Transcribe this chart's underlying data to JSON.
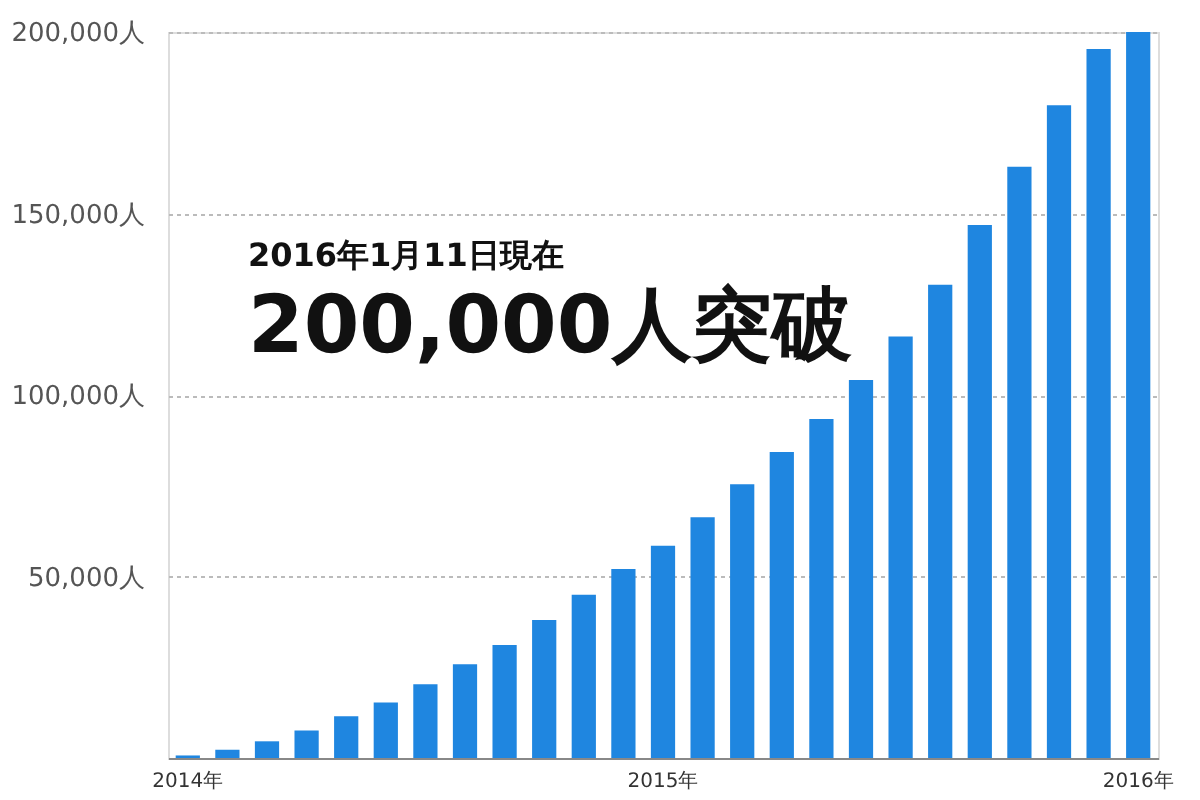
{
  "chart_data": {
    "type": "bar",
    "categories": [
      "2014年",
      null,
      null,
      null,
      null,
      null,
      null,
      null,
      null,
      null,
      null,
      null,
      "2015年",
      null,
      null,
      null,
      null,
      null,
      null,
      null,
      null,
      null,
      null,
      null,
      "2016年"
    ],
    "values": [
      700,
      2300,
      4600,
      7600,
      11500,
      15300,
      20300,
      25800,
      31100,
      38000,
      45000,
      52100,
      58500,
      66300,
      75400,
      84300,
      93400,
      104100,
      116100,
      130400,
      146800,
      162900,
      179800,
      195300,
      200000
    ],
    "color": "#1f86e0",
    "ylim": [
      0,
      200000
    ],
    "yticks": [
      {
        "value": 50000,
        "label": "50,000人"
      },
      {
        "value": 100000,
        "label": "100,000人"
      },
      {
        "value": 150000,
        "label": "150,000人"
      },
      {
        "value": 200000,
        "label": "200,000人"
      }
    ],
    "grid": "y",
    "annotations": [
      "2016年1月11日現在",
      "200,000人突破"
    ]
  }
}
